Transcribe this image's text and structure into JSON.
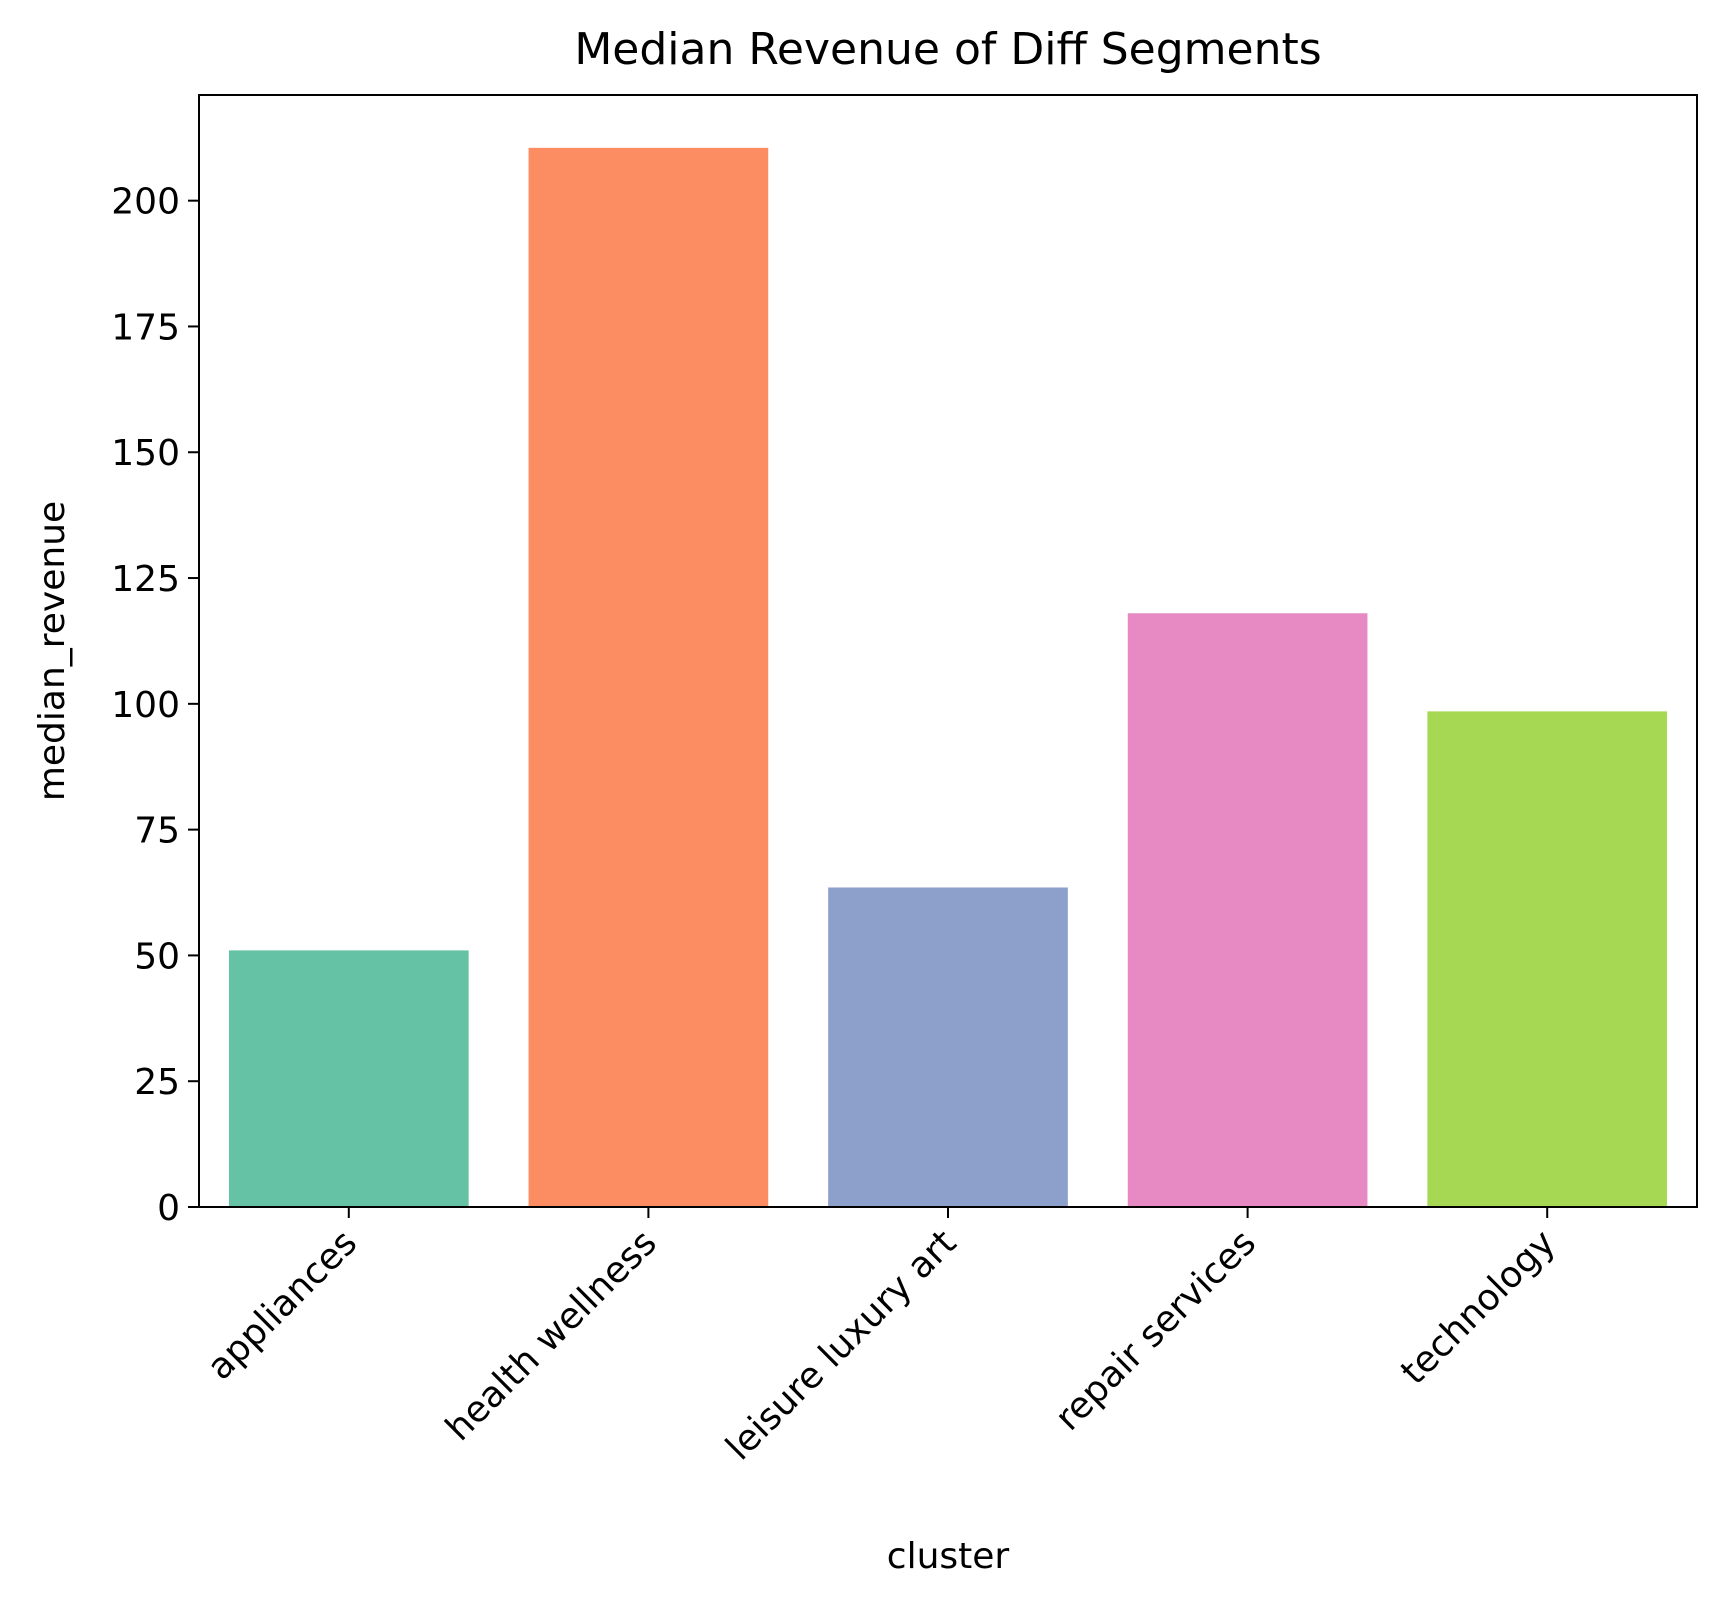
{
  "chart_data": {
    "type": "bar",
    "title": "Median Revenue of Diff Segments",
    "xlabel": "cluster",
    "ylabel": "median_revenue",
    "categories": [
      "appliances",
      "health wellness",
      "leisure luxury art",
      "repair services",
      "technology"
    ],
    "values": [
      51,
      210.5,
      63.5,
      118,
      98.5
    ],
    "colors": [
      "#66c2a5",
      "#fc8d62",
      "#8da0cb",
      "#e78ac3",
      "#a6d854"
    ],
    "yticks": [
      0,
      25,
      50,
      75,
      100,
      125,
      150,
      175,
      200
    ],
    "ylim": [
      0,
      221
    ],
    "grid": false,
    "legend": "none"
  }
}
